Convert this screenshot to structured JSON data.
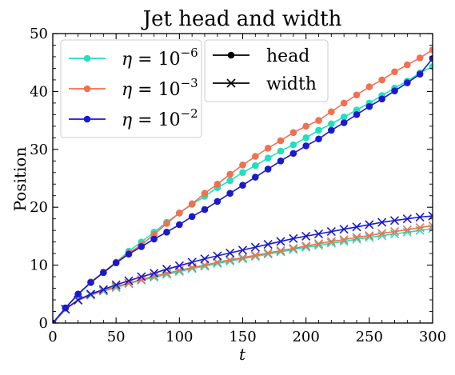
{
  "chart_data": {
    "type": "line",
    "title": "Jet head and width",
    "xlabel": "t",
    "ylabel": "Position",
    "xlim": [
      0,
      300
    ],
    "ylim": [
      0,
      50
    ],
    "xticks": [
      0,
      50,
      100,
      150,
      200,
      250,
      300
    ],
    "yticks": [
      0,
      10,
      20,
      30,
      40,
      50
    ],
    "grid": false,
    "x": [
      0,
      10,
      20,
      30,
      40,
      50,
      60,
      70,
      80,
      90,
      100,
      110,
      120,
      130,
      140,
      150,
      160,
      170,
      180,
      190,
      200,
      210,
      220,
      230,
      240,
      250,
      260,
      270,
      280,
      290,
      300
    ],
    "series": [
      {
        "name": "η = 10^-6",
        "color": "#20e0c0",
        "head": [
          0,
          2.6,
          4.9,
          7.0,
          8.8,
          10.5,
          12.4,
          14.0,
          15.7,
          17.4,
          19.0,
          20.5,
          21.9,
          23.4,
          24.6,
          26.0,
          27.2,
          28.5,
          29.7,
          30.8,
          32.0,
          33.3,
          34.4,
          35.6,
          36.8,
          38.0,
          39.3,
          40.6,
          41.8,
          43.2,
          44.3
        ],
        "width": [
          0,
          2.4,
          3.9,
          4.8,
          5.5,
          6.1,
          6.8,
          7.4,
          7.9,
          8.4,
          8.9,
          9.4,
          9.8,
          10.3,
          10.7,
          11.1,
          11.5,
          11.9,
          12.3,
          12.7,
          13.1,
          13.4,
          13.8,
          14.1,
          14.5,
          14.8,
          15.1,
          15.4,
          15.7,
          16.0,
          16.3
        ]
      },
      {
        "name": "η = 10^-3",
        "color": "#f07050",
        "head": [
          0,
          2.6,
          5.0,
          7.1,
          8.8,
          10.5,
          12.1,
          13.5,
          15.3,
          17.2,
          19.0,
          20.6,
          22.4,
          24.0,
          25.7,
          27.3,
          28.8,
          30.2,
          31.5,
          32.9,
          34.0,
          35.0,
          36.5,
          38.0,
          39.4,
          40.8,
          42.0,
          43.4,
          44.6,
          45.8,
          47.2
        ],
        "width": [
          0,
          2.4,
          3.9,
          4.9,
          5.6,
          6.3,
          6.9,
          7.5,
          8.1,
          8.6,
          9.1,
          9.6,
          10.0,
          10.5,
          10.9,
          11.3,
          11.7,
          12.1,
          12.5,
          12.9,
          13.3,
          13.7,
          14.1,
          14.4,
          14.8,
          15.1,
          15.5,
          15.8,
          16.1,
          16.5,
          16.8
        ]
      },
      {
        "name": "η = 10^-2",
        "color": "#1a1acc",
        "head": [
          0,
          2.6,
          5.0,
          7.0,
          8.7,
          10.4,
          11.9,
          13.2,
          14.5,
          15.7,
          17.0,
          18.4,
          19.6,
          21.0,
          22.4,
          23.8,
          25.2,
          26.6,
          28.0,
          29.3,
          30.6,
          31.8,
          33.3,
          34.6,
          36.0,
          37.4,
          38.7,
          40.1,
          41.5,
          43.0,
          45.7
        ],
        "width": [
          0,
          2.4,
          4.0,
          5.0,
          5.8,
          6.6,
          7.3,
          8.0,
          8.6,
          9.3,
          9.9,
          10.5,
          11.1,
          11.6,
          12.1,
          12.6,
          13.1,
          13.6,
          14.1,
          14.6,
          15.0,
          15.4,
          15.8,
          16.2,
          16.6,
          17.0,
          17.4,
          17.7,
          18.0,
          18.3,
          18.5
        ]
      }
    ],
    "legend_series": {
      "placement": "upper-left",
      "entries": [
        {
          "base": "η",
          "op": " = 10",
          "exp": "−6"
        },
        {
          "base": "η",
          "op": " = 10",
          "exp": "−3"
        },
        {
          "base": "η",
          "op": " = 10",
          "exp": "−2"
        }
      ]
    },
    "legend_style": {
      "placement": "upper-center",
      "entries": [
        {
          "label": "head",
          "marker": "dot"
        },
        {
          "label": "width",
          "marker": "x"
        }
      ]
    }
  }
}
